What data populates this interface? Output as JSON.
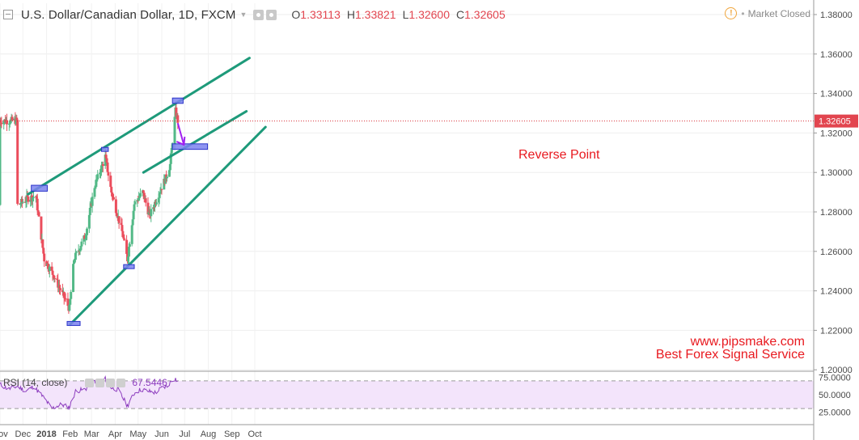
{
  "header": {
    "title": "U.S. Dollar/Canadian Dollar, 1D, FXCM",
    "open_label": "O",
    "open": "1.33113",
    "high_label": "H",
    "high": "1.33821",
    "low_label": "L",
    "low": "1.32600",
    "close_label": "C",
    "close": "1.32605",
    "status": "Market Closed"
  },
  "annotations": {
    "reverse_point": "Reverse Point",
    "website": "www.pipsmake.com",
    "tagline": "Best Forex Signal Service"
  },
  "rsi": {
    "label": "RSI (14, close)",
    "value": "67.5446",
    "levels": [
      70,
      30
    ]
  },
  "colors": {
    "up": "#53b987",
    "down": "#eb4d5c",
    "trendline": "#1e9a7a",
    "zone_fill": "#7b82ee",
    "zone_stroke": "#2b34c9",
    "arrow": "#a020f0",
    "rsi_line": "#8e3fbf",
    "rsi_band": "#f3e4fb"
  },
  "chart_data": [
    {
      "type": "candlestick",
      "series_name": "USDCAD Daily",
      "x_axis_labels": [
        "Nov",
        "Dec",
        "2018",
        "Feb",
        "Mar",
        "Apr",
        "May",
        "Jun",
        "Jul",
        "Aug",
        "Sep",
        "Oct"
      ],
      "y_ticks": [
        "1.38000",
        "1.36000",
        "1.34000",
        "1.32000",
        "1.30000",
        "1.28000",
        "1.26000",
        "1.24000",
        "1.22000",
        "1.20000"
      ],
      "ylim": [
        1.2,
        1.38
      ],
      "last_price": "1.32605",
      "close_path": [
        [
          "2017-11-24",
          1.2835
        ],
        [
          "2017-12-08",
          1.287
        ],
        [
          "2017-12-18",
          1.288
        ],
        [
          "2017-12-29",
          1.256
        ],
        [
          "2018-01-10",
          1.248
        ],
        [
          "2018-01-31",
          1.231
        ],
        [
          "2018-02-06",
          1.256
        ],
        [
          "2018-02-21",
          1.268
        ],
        [
          "2018-03-05",
          1.293
        ],
        [
          "2018-03-19",
          1.308
        ],
        [
          "2018-03-27",
          1.29
        ],
        [
          "2018-04-10",
          1.27
        ],
        [
          "2018-04-17",
          1.256
        ],
        [
          "2018-04-26",
          1.284
        ],
        [
          "2018-05-07",
          1.29
        ],
        [
          "2018-05-16",
          1.278
        ],
        [
          "2018-05-31",
          1.292
        ],
        [
          "2018-06-06",
          1.297
        ],
        [
          "2018-06-12",
          1.304
        ],
        [
          "2018-06-19",
          1.331
        ],
        [
          "2018-06-22",
          1.3262
        ]
      ],
      "trendlines": [
        {
          "from": [
            "2017-12-08",
            1.289
          ],
          "to": [
            "2018-09-24",
            1.358
          ]
        },
        {
          "from": [
            "2018-02-01",
            1.223
          ],
          "to": [
            "2018-10-15",
            1.323
          ]
        },
        {
          "from": [
            "2018-05-08",
            1.3
          ],
          "to": [
            "2018-09-20",
            1.331
          ]
        }
      ],
      "zones": [
        {
          "from": "2017-12-12",
          "to": "2018-01-02",
          "y": [
            1.2905,
            1.2935
          ]
        },
        {
          "from": "2018-01-28",
          "to": "2018-02-14",
          "y": [
            1.223,
            1.2245
          ]
        },
        {
          "from": "2018-03-14",
          "to": "2018-03-23",
          "y": [
            1.3112,
            1.3127
          ]
        },
        {
          "from": "2018-04-12",
          "to": "2018-04-26",
          "y": [
            1.2518,
            1.2533
          ]
        },
        {
          "from": "2018-06-15",
          "to": "2018-06-29",
          "y": [
            1.335,
            1.3377
          ]
        },
        {
          "from": "2018-06-15",
          "to": "2018-07-31",
          "y": [
            1.3117,
            1.3145
          ]
        }
      ],
      "arrow": {
        "from": [
          "2018-06-22",
          1.325
        ],
        "to": [
          "2018-06-30",
          1.314
        ]
      }
    },
    {
      "type": "line",
      "series_name": "RSI (14, close)",
      "y_ticks": [
        "75.0000",
        "50.0000",
        "25.0000"
      ],
      "ylim": [
        25,
        75
      ],
      "values_path": [
        [
          "2017-11-01",
          65
        ],
        [
          "2017-11-12",
          58
        ],
        [
          "2017-11-24",
          62
        ],
        [
          "2017-12-05",
          55
        ],
        [
          "2017-12-15",
          62
        ],
        [
          "2017-12-29",
          45
        ],
        [
          "2018-01-08",
          30
        ],
        [
          "2018-01-20",
          36
        ],
        [
          "2018-01-31",
          32
        ],
        [
          "2018-02-08",
          55
        ],
        [
          "2018-02-21",
          58
        ],
        [
          "2018-03-05",
          70
        ],
        [
          "2018-03-12",
          63
        ],
        [
          "2018-03-19",
          73
        ],
        [
          "2018-03-27",
          60
        ],
        [
          "2018-04-05",
          57
        ],
        [
          "2018-04-17",
          34
        ],
        [
          "2018-04-26",
          52
        ],
        [
          "2018-05-05",
          58
        ],
        [
          "2018-05-14",
          55
        ],
        [
          "2018-05-24",
          53
        ],
        [
          "2018-06-01",
          60
        ],
        [
          "2018-06-08",
          62
        ],
        [
          "2018-06-15",
          72
        ],
        [
          "2018-06-19",
          73
        ],
        [
          "2018-06-22",
          67.5
        ]
      ]
    }
  ]
}
